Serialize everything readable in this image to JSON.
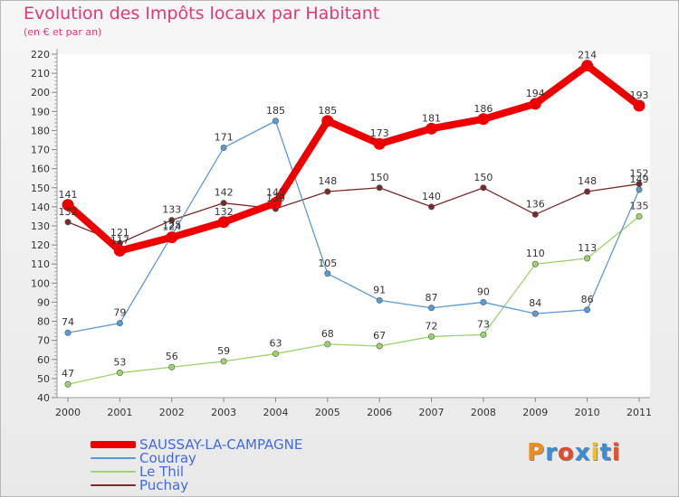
{
  "title": "Evolution des Impôts locaux par Habitant",
  "subtitle": "(en € et par an)",
  "logo": {
    "text": "Proxiti",
    "colors": [
      "#f08c1a",
      "#3b8ed6",
      "#e14a2a",
      "#3b8ed6",
      "#f0c020",
      "#3b8ed6",
      "#e8502a"
    ]
  },
  "chart_data": {
    "type": "line",
    "title": "Evolution des Impôts locaux par Habitant",
    "subtitle": "(en € et par an)",
    "xlabel": "",
    "ylabel": "",
    "categories": [
      "2000",
      "2001",
      "2002",
      "2003",
      "2004",
      "2005",
      "2006",
      "2007",
      "2008",
      "2009",
      "2010",
      "2011"
    ],
    "ylim": [
      40,
      220
    ],
    "yticks": [
      40,
      50,
      60,
      70,
      80,
      90,
      100,
      110,
      120,
      130,
      140,
      150,
      160,
      170,
      180,
      190,
      200,
      210,
      220
    ],
    "grid": false,
    "legend_position": "bottom-left",
    "series": [
      {
        "name": "SAUSSAY-LA-CAMPAGNE",
        "color": "#ee0000",
        "values": [
          141,
          117,
          124,
          132,
          142,
          185,
          173,
          181,
          186,
          194,
          214,
          193
        ]
      },
      {
        "name": "Coudray",
        "color": "#5b9bd5",
        "values": [
          74,
          79,
          125,
          171,
          185,
          105,
          91,
          87,
          90,
          84,
          86,
          149
        ]
      },
      {
        "name": "Le Thil",
        "color": "#9ad46a",
        "values": [
          47,
          53,
          56,
          59,
          63,
          68,
          67,
          72,
          73,
          110,
          113,
          135
        ]
      },
      {
        "name": "Puchay",
        "color": "#7a2a2a",
        "values": [
          132,
          121,
          133,
          142,
          139,
          148,
          150,
          140,
          150,
          136,
          148,
          152
        ]
      }
    ]
  }
}
